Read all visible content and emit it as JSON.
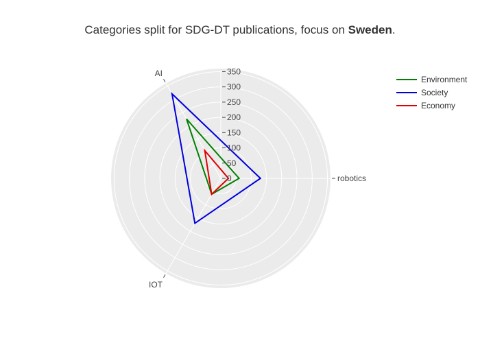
{
  "chart_data": {
    "type": "radar",
    "title_prefix": "Categories split for SDG-DT publications, focus on ",
    "title_bold": "Sweden",
    "title_suffix": ".",
    "categories": [
      "robotics",
      "AI",
      "IOT"
    ],
    "radial_ticks": [
      0,
      50,
      100,
      150,
      200,
      250,
      300,
      350
    ],
    "radial_range": [
      0,
      360
    ],
    "series": [
      {
        "name": "Environment",
        "color": "#008000",
        "values": [
          60,
          225,
          60
        ]
      },
      {
        "name": "Society",
        "color": "#0000dd",
        "values": [
          130,
          320,
          170
        ]
      },
      {
        "name": "Economy",
        "color": "#e00000",
        "values": [
          25,
          105,
          60
        ]
      }
    ],
    "legend_position": "top-right",
    "grid": true
  }
}
